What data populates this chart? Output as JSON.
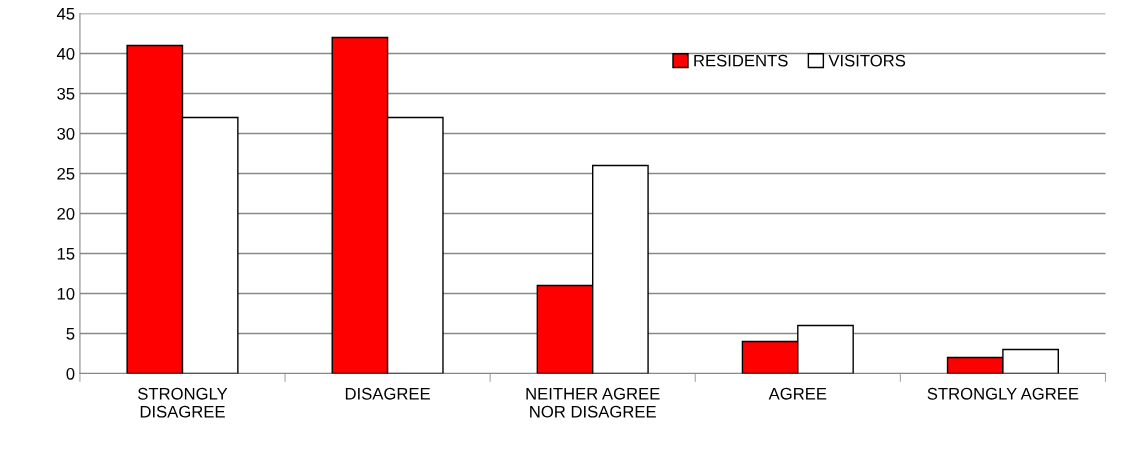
{
  "chart_data": {
    "type": "bar",
    "categories": [
      "STRONGLY\nDISAGREE",
      "DISAGREE",
      "NEITHER AGREE\nNOR DISAGREE",
      "AGREE",
      "STRONGLY AGREE"
    ],
    "series": [
      {
        "name": "RESIDENTS",
        "color": "#ff0000",
        "values": [
          41,
          42,
          11,
          4,
          2
        ]
      },
      {
        "name": "VISITORS",
        "color": "#ffffff",
        "values": [
          32,
          32,
          26,
          6,
          3
        ]
      }
    ],
    "ylim": [
      0,
      45
    ],
    "yticks": [
      0,
      5,
      10,
      15,
      20,
      25,
      30,
      35,
      40,
      45
    ],
    "grid": "y",
    "legend": "top right"
  }
}
